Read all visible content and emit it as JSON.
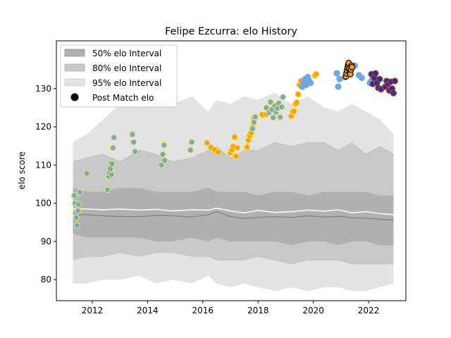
{
  "chart_data": {
    "type": "scatter",
    "title": "Felipe Ezcurra: elo History",
    "xlabel": "",
    "ylabel": "elo score",
    "xlim": [
      2010.7,
      2023.35
    ],
    "ylim": [
      74.5,
      142.5
    ],
    "x_ticks": [
      2012,
      2014,
      2016,
      2018,
      2020,
      2022
    ],
    "y_ticks": [
      80,
      90,
      100,
      110,
      120,
      130
    ],
    "grid": false,
    "legend_position": "top-left",
    "legend": [
      {
        "label": "50% elo Interval",
        "kind": "band",
        "color": "#b0b0b0"
      },
      {
        "label": "80% elo Interval",
        "kind": "band",
        "color": "#c8c8c8"
      },
      {
        "label": "95% elo Interval",
        "kind": "band",
        "color": "#e3e3e3"
      },
      {
        "label": "Post Match elo",
        "kind": "marker",
        "color": "#000000"
      }
    ],
    "band_x": [
      2011.3,
      2011.8,
      2012.4,
      2013.0,
      2013.7,
      2014.3,
      2014.9,
      2015.6,
      2016.2,
      2016.5,
      2017.0,
      2017.5,
      2018.0,
      2018.6,
      2019.2,
      2019.8,
      2020.4,
      2020.9,
      2021.4,
      2021.9,
      2022.4,
      2022.9
    ],
    "band_95_upper": [
      116,
      118,
      122,
      126,
      125,
      127,
      126,
      128,
      124,
      127,
      126,
      128,
      127,
      129,
      126,
      128,
      125,
      124,
      126,
      124,
      122,
      118
    ],
    "band_95_lower": [
      79,
      79,
      80,
      80,
      81,
      79,
      80,
      79,
      81,
      79,
      78,
      79,
      78,
      77,
      78,
      77,
      78,
      78,
      77,
      77,
      78,
      79
    ],
    "band_80_upper": [
      111,
      112,
      113,
      111,
      114,
      113,
      111,
      112,
      114,
      115,
      112,
      114,
      114,
      116,
      115,
      116,
      116,
      114,
      116,
      113,
      115,
      113
    ],
    "band_80_lower": [
      85,
      86,
      86,
      87,
      86,
      87,
      87,
      86,
      86,
      85,
      85,
      85,
      86,
      85,
      84,
      85,
      85,
      85,
      84,
      84,
      84,
      84
    ],
    "band_50_upper": [
      104,
      103,
      103,
      104,
      104,
      103,
      103,
      103,
      104,
      103,
      103,
      103,
      102,
      103,
      103,
      102,
      103,
      103,
      103,
      103,
      102,
      102
    ],
    "band_50_lower": [
      92,
      91,
      91,
      91,
      91,
      90,
      90,
      91,
      90,
      91,
      90,
      90,
      90,
      90,
      89,
      90,
      90,
      89,
      90,
      90,
      89,
      89
    ],
    "mean_line": {
      "color": "#ffffff",
      "values": [
        98.6,
        98.5,
        98.3,
        98.5,
        98.2,
        98.4,
        98.0,
        98.3,
        98.2,
        98.7,
        98.0,
        97.5,
        98.1,
        97.6,
        97.8,
        98.2,
        97.9,
        98.3,
        97.5,
        97.8,
        97.3,
        97.0
      ]
    },
    "median_line": {
      "color": "#888888",
      "values": [
        97.0,
        97.0,
        96.7,
        96.5,
        96.5,
        96.8,
        96.7,
        96.4,
        97.0,
        97.8,
        96.5,
        96.0,
        96.3,
        96.5,
        96.3,
        96.7,
        96.4,
        96.6,
        96.2,
        96.1,
        95.8,
        95.6
      ]
    },
    "series": [
      {
        "face": "#6fa8dc",
        "edge": "#f0e040",
        "x": [
          2011.35,
          2011.38,
          2011.4,
          2011.42,
          2011.45,
          2011.48,
          2011.5,
          2011.55,
          2011.8,
          2012.55,
          2012.6,
          2012.62,
          2012.65,
          2012.68,
          2012.7,
          2012.72,
          2012.75,
          2012.78,
          2013.45,
          2013.5,
          2013.55,
          2014.5,
          2014.55,
          2014.6,
          2014.62,
          2015.55,
          2015.6
        ],
        "y": [
          102.0,
          100.0,
          97.5,
          96.2,
          94.2,
          98.0,
          99.7,
          102.8,
          107.8,
          103.5,
          107.0,
          108.0,
          109.0,
          110.5,
          107.5,
          110.3,
          114.5,
          117.2,
          118.0,
          116.0,
          113.5,
          110.0,
          112.8,
          115.2,
          111.2,
          113.9,
          116.0
        ]
      },
      {
        "face": "#ff9a1a",
        "edge": "#f0e040",
        "x": [
          2016.15,
          2016.3,
          2016.42,
          2016.55,
          2017.0,
          2017.05,
          2017.1,
          2017.15,
          2017.2,
          2017.25,
          2017.6,
          2017.65,
          2017.7,
          2017.75,
          2017.8,
          2017.85,
          2018.15,
          2018.3,
          2018.55,
          2019.2,
          2019.25,
          2019.3,
          2019.35,
          2019.4,
          2019.45,
          2019.5,
          2019.55,
          2020.05,
          2020.1
        ],
        "y": [
          115.8,
          114.6,
          114.0,
          113.4,
          113.2,
          114.0,
          114.8,
          117.3,
          112.3,
          114.5,
          114.7,
          116.5,
          117.7,
          118.4,
          120.0,
          122.2,
          123.2,
          123.3,
          124.8,
          122.8,
          124.0,
          124.1,
          126.0,
          126.4,
          128.5,
          131.0,
          132.0,
          133.4,
          133.8
        ]
      },
      {
        "face": "#6fa8dc",
        "edge": "#f0e040",
        "x": [
          2017.8,
          2017.85,
          2017.9,
          2018.3,
          2018.4,
          2018.45,
          2018.5,
          2018.55,
          2018.6,
          2018.65,
          2018.7,
          2018.75,
          2018.8,
          2018.85,
          2018.9
        ],
        "y": [
          119.5,
          121.2,
          122.6,
          125.0,
          123.7,
          126.5,
          124.5,
          122.4,
          125.5,
          123.8,
          124.8,
          126.2,
          122.5,
          125.2,
          127.8
        ]
      },
      {
        "face": "#6fa8dc",
        "edge": "#6fa8dc",
        "x": [
          2019.6,
          2019.65,
          2019.7,
          2019.75,
          2019.8,
          2019.85,
          2019.9,
          2020.85,
          2020.9,
          2020.95,
          2021.15,
          2021.5,
          2021.65,
          2021.75,
          2022.05,
          2022.1,
          2022.15
        ],
        "y": [
          130.5,
          131.5,
          132.5,
          131.0,
          133.0,
          132.0,
          131.5,
          134.0,
          130.5,
          132.5,
          133.0,
          136.0,
          133.5,
          132.8,
          131.5,
          132.0,
          133.0
        ]
      },
      {
        "face": "#ff9a1a",
        "edge": "#000000",
        "x": [
          2021.18,
          2021.2,
          2021.22,
          2021.24,
          2021.26,
          2021.28,
          2021.3,
          2021.32,
          2021.34,
          2021.36,
          2021.38,
          2021.4
        ],
        "y": [
          133.2,
          134.0,
          134.8,
          135.5,
          136.2,
          136.7,
          135.3,
          134.2,
          133.8,
          135.0,
          136.0,
          135.6
        ]
      },
      {
        "face": "#1a3a8c",
        "edge": "#d03030",
        "x": [
          2022.1,
          2022.15,
          2022.2,
          2022.25,
          2022.3,
          2022.35,
          2022.4,
          2022.45,
          2022.6,
          2022.65,
          2022.7,
          2022.75,
          2022.8,
          2022.85,
          2022.9,
          2022.95
        ],
        "y": [
          133.8,
          131.2,
          132.8,
          134.0,
          131.5,
          130.2,
          132.5,
          129.8,
          130.5,
          132.0,
          131.2,
          129.5,
          131.8,
          130.0,
          128.8,
          132.0
        ]
      }
    ]
  }
}
